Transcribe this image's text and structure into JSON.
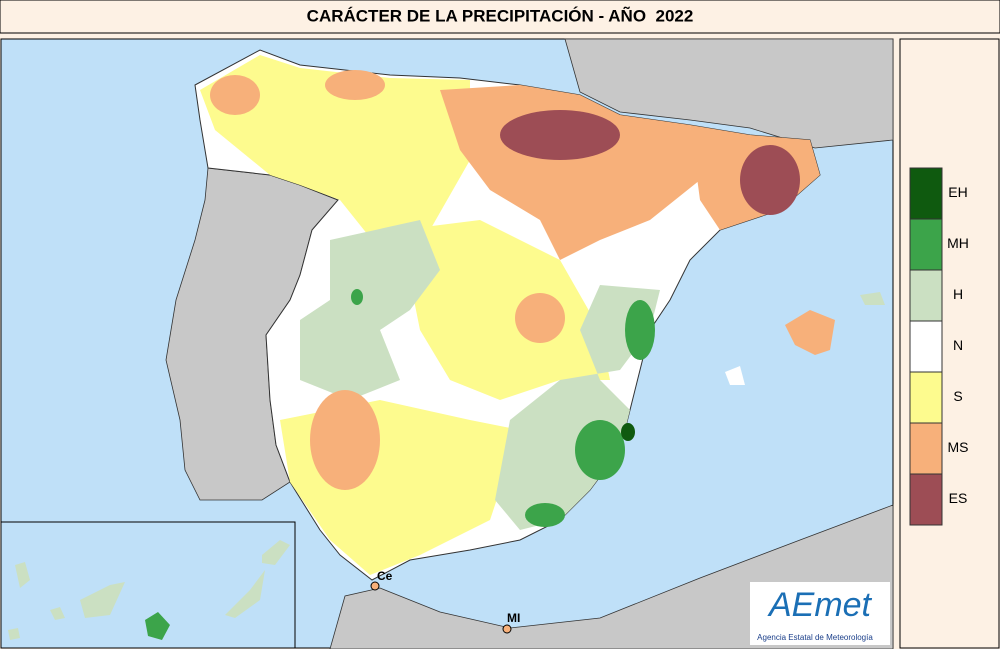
{
  "header": {
    "title": "CARÁCTER DE LA PRECIPITACIÓN - AÑO  2022"
  },
  "legend": [
    {
      "label": "EH",
      "color": "#0f5a0f"
    },
    {
      "label": "MH",
      "color": "#3ca44a"
    },
    {
      "label": "H",
      "color": "#cbe0c2"
    },
    {
      "label": "N",
      "color": "#ffffff"
    },
    {
      "label": "S",
      "color": "#fdfb8e"
    },
    {
      "label": "MS",
      "color": "#f7b07a"
    },
    {
      "label": "ES",
      "color": "#9d4d55"
    }
  ],
  "map_labels": [
    "Ce",
    "MI"
  ],
  "logo": {
    "name": "AEmet",
    "subtitle": "Agencia Estatal de Meteorología"
  }
}
